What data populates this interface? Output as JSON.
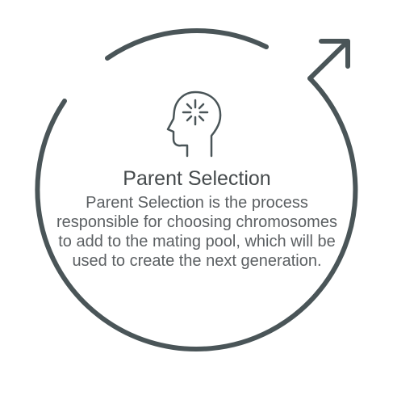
{
  "diagram": {
    "title": "Parent Selection",
    "description": "Parent Selection is the process responsible for choosing chromosomes to add to the mating pool, which will be used to create the next generation.",
    "icons": {
      "cycle": "circular-arrow-icon",
      "head": "head-with-idea-icon"
    },
    "colors": {
      "stroke": "#4a5558",
      "title_text": "#454a4c",
      "body_text": "#5c6063"
    }
  }
}
